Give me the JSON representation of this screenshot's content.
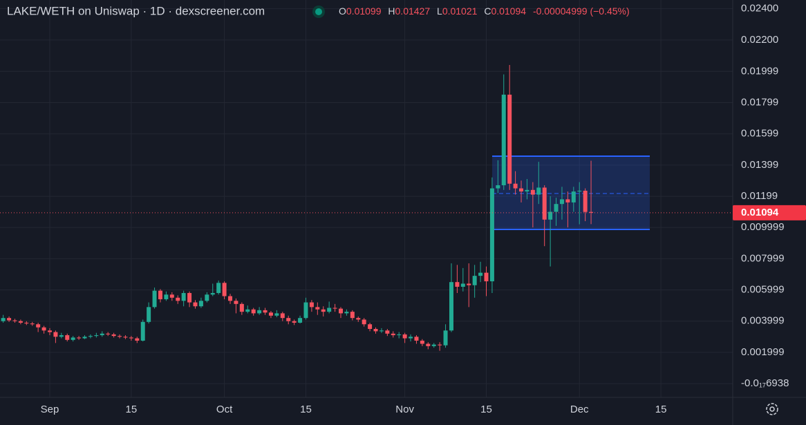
{
  "chart_data": {
    "type": "candlestick",
    "title": "LAKE/WETH on Uniswap · 1D · dexscreener.com",
    "legend": {
      "labels": [
        "O",
        "H",
        "L",
        "C"
      ],
      "values": [
        "0.01099",
        "0.01427",
        "0.01021",
        "0.01094"
      ],
      "change": "-0.00004999 (−0.45%)"
    },
    "up_color": "#22ab94",
    "down_color": "#f7525f",
    "grid": true,
    "categories": [
      null,
      null,
      null,
      null,
      null,
      null,
      null,
      null,
      "Sep",
      null,
      null,
      null,
      null,
      null,
      null,
      null,
      null,
      null,
      null,
      null,
      null,
      null,
      "15",
      null,
      null,
      null,
      null,
      null,
      null,
      null,
      null,
      null,
      null,
      null,
      null,
      null,
      null,
      null,
      "Oct",
      null,
      null,
      null,
      null,
      null,
      null,
      null,
      null,
      null,
      null,
      null,
      null,
      null,
      "15",
      null,
      null,
      null,
      null,
      null,
      null,
      null,
      null,
      null,
      null,
      null,
      null,
      null,
      null,
      null,
      null,
      "Nov",
      null,
      null,
      null,
      null,
      null,
      null,
      null,
      null,
      null,
      null,
      null,
      null,
      null,
      "15",
      null,
      null,
      null,
      null,
      null,
      null,
      null,
      null,
      null,
      null,
      null,
      null,
      null,
      null,
      null,
      "Dec",
      null,
      null,
      null,
      null,
      null,
      null,
      null,
      null,
      null,
      null,
      null,
      null,
      null,
      "15"
    ],
    "open": [
      0.004,
      0.0042,
      0.00405,
      0.004,
      0.0039,
      0.00385,
      0.0038,
      0.0036,
      0.0034,
      0.0033,
      0.003,
      0.0031,
      0.0028,
      0.00295,
      0.0029,
      0.003,
      0.00305,
      0.0031,
      0.0032,
      0.00315,
      0.00305,
      0.003,
      0.00295,
      0.0029,
      0.00275,
      0.00395,
      0.0049,
      0.00595,
      0.0054,
      0.0057,
      0.0055,
      0.0053,
      0.0058,
      0.0052,
      0.00495,
      0.0053,
      0.0057,
      0.0058,
      0.00645,
      0.0056,
      0.0053,
      0.0051,
      0.0046,
      0.00475,
      0.0045,
      0.0047,
      0.00455,
      0.00435,
      0.0045,
      0.0042,
      0.004,
      0.0039,
      0.0042,
      0.0052,
      0.0049,
      0.00475,
      0.0046,
      0.00485,
      0.0048,
      0.0045,
      0.0046,
      0.0042,
      0.0041,
      0.0038,
      0.0035,
      0.00335,
      0.0034,
      0.0032,
      0.0031,
      0.00315,
      0.0029,
      0.003,
      0.00275,
      0.00255,
      0.0024,
      0.0025,
      0.00245,
      0.0034,
      0.0065,
      0.0062,
      0.0064,
      0.0063,
      0.0069,
      0.0071,
      0.00655,
      0.0125,
      0.0127,
      0.0185,
      0.0128,
      0.0125,
      0.0123,
      0.0124,
      0.0121,
      0.01255,
      0.0105,
      0.011,
      0.0115,
      0.0118,
      0.0116,
      0.0123,
      0.01235,
      0.01099,
      null,
      null,
      null,
      null,
      null,
      null,
      null,
      null,
      null,
      null,
      null,
      null
    ],
    "high": [
      0.0044,
      0.0043,
      0.00415,
      0.0041,
      0.004,
      0.00395,
      0.0039,
      0.0037,
      0.00355,
      0.0034,
      0.00325,
      0.0032,
      0.00305,
      0.00305,
      0.0031,
      0.00315,
      0.00325,
      0.00335,
      0.0033,
      0.00325,
      0.00315,
      0.0031,
      0.00305,
      0.003,
      0.0041,
      0.0052,
      0.00615,
      0.00605,
      0.0059,
      0.00585,
      0.00565,
      0.00595,
      0.0059,
      0.00535,
      0.0055,
      0.00585,
      0.0064,
      0.0066,
      0.00655,
      0.00575,
      0.00545,
      0.0052,
      0.005,
      0.00485,
      0.0049,
      0.00485,
      0.00465,
      0.0047,
      0.0046,
      0.00435,
      0.0041,
      0.00435,
      0.0055,
      0.00535,
      0.0052,
      0.00495,
      0.00525,
      0.0051,
      0.0049,
      0.00475,
      0.0047,
      0.0043,
      0.0042,
      0.0039,
      0.0036,
      0.00355,
      0.0035,
      0.00335,
      0.0033,
      0.00325,
      0.00315,
      0.0031,
      0.00285,
      0.00265,
      0.0026,
      0.00265,
      0.0038,
      0.0077,
      0.0076,
      0.0074,
      0.0077,
      0.0076,
      0.0078,
      0.0075,
      0.0132,
      0.0143,
      0.0198,
      0.0204,
      0.0136,
      0.013,
      0.0131,
      0.0129,
      0.0142,
      0.0127,
      0.012,
      0.0119,
      0.0126,
      0.0123,
      0.0126,
      0.0129,
      0.0125,
      0.01427,
      null,
      null,
      null,
      null,
      null,
      null,
      null,
      null,
      null,
      null,
      null,
      null
    ],
    "low": [
      0.0039,
      0.00395,
      0.0039,
      0.0038,
      0.00375,
      0.0037,
      0.0033,
      0.0032,
      0.0031,
      0.0026,
      0.0029,
      0.0027,
      0.0027,
      0.0028,
      0.00285,
      0.0029,
      0.00295,
      0.003,
      0.00305,
      0.00295,
      0.0029,
      0.00285,
      0.00275,
      0.0026,
      0.0027,
      0.00385,
      0.0048,
      0.0052,
      0.0053,
      0.0053,
      0.0051,
      0.00495,
      0.0049,
      0.0048,
      0.00485,
      0.0052,
      0.0056,
      0.0057,
      0.0054,
      0.0051,
      0.0045,
      0.0044,
      0.0045,
      0.00435,
      0.0044,
      0.0044,
      0.0042,
      0.00425,
      0.004,
      0.0038,
      0.00375,
      0.00385,
      0.0041,
      0.0046,
      0.0044,
      0.0043,
      0.0045,
      0.0046,
      0.0042,
      0.00435,
      0.00405,
      0.00395,
      0.00365,
      0.00335,
      0.0032,
      0.00325,
      0.00305,
      0.00295,
      0.0029,
      0.0026,
      0.0027,
      0.00255,
      0.0024,
      0.0022,
      0.0023,
      0.0021,
      0.0023,
      0.0033,
      0.0058,
      0.0059,
      0.0049,
      0.0055,
      0.0065,
      0.0056,
      0.0058,
      0.0122,
      0.0124,
      0.0124,
      0.0121,
      0.0116,
      0.0118,
      0.01,
      0.0115,
      0.0088,
      0.0075,
      0.0101,
      0.0105,
      0.01,
      0.011,
      0.0102,
      0.0104,
      0.01021,
      null,
      null,
      null,
      null,
      null,
      null,
      null,
      null,
      null,
      null,
      null,
      null
    ],
    "close": [
      0.0042,
      0.00405,
      0.004,
      0.0039,
      0.00385,
      0.0038,
      0.0036,
      0.0034,
      0.0033,
      0.003,
      0.0031,
      0.0028,
      0.00295,
      0.0029,
      0.003,
      0.00305,
      0.0031,
      0.0032,
      0.00315,
      0.00305,
      0.003,
      0.00295,
      0.0029,
      0.00275,
      0.00395,
      0.0049,
      0.00595,
      0.0054,
      0.0057,
      0.0055,
      0.0053,
      0.0058,
      0.0052,
      0.00495,
      0.0053,
      0.0057,
      0.0058,
      0.00645,
      0.0056,
      0.0053,
      0.0051,
      0.0046,
      0.00475,
      0.0045,
      0.0047,
      0.00455,
      0.00435,
      0.0045,
      0.0042,
      0.004,
      0.0039,
      0.0042,
      0.0052,
      0.0049,
      0.00475,
      0.0046,
      0.00485,
      0.0048,
      0.0045,
      0.0046,
      0.0042,
      0.0041,
      0.0038,
      0.0035,
      0.00335,
      0.0034,
      0.0032,
      0.0031,
      0.00315,
      0.0029,
      0.003,
      0.00275,
      0.00255,
      0.0024,
      0.0025,
      0.00245,
      0.0034,
      0.0065,
      0.0062,
      0.0064,
      0.0063,
      0.0069,
      0.0071,
      0.00655,
      0.0125,
      0.0127,
      0.0185,
      0.0128,
      0.0125,
      0.0123,
      0.0124,
      0.0121,
      0.01255,
      0.0105,
      0.011,
      0.0115,
      0.0118,
      0.0116,
      0.0123,
      0.01235,
      0.01099,
      0.01094,
      null,
      null,
      null,
      null,
      null,
      null,
      null,
      null,
      null,
      null,
      null,
      null
    ],
    "ylim": [
      -0.00088,
      0.02456
    ],
    "yticks": [
      {
        "value": -6.938e-19,
        "label": "-0.0₁₇6938"
      },
      0.001999,
      0.003999,
      0.005999,
      0.007999,
      0.009999,
      0.01199,
      0.01399,
      0.01599,
      0.01799,
      0.01999,
      {
        "value": 0.022,
        "label": "0.02200"
      },
      {
        "value": 0.024,
        "label": "0.02400"
      }
    ]
  }
}
